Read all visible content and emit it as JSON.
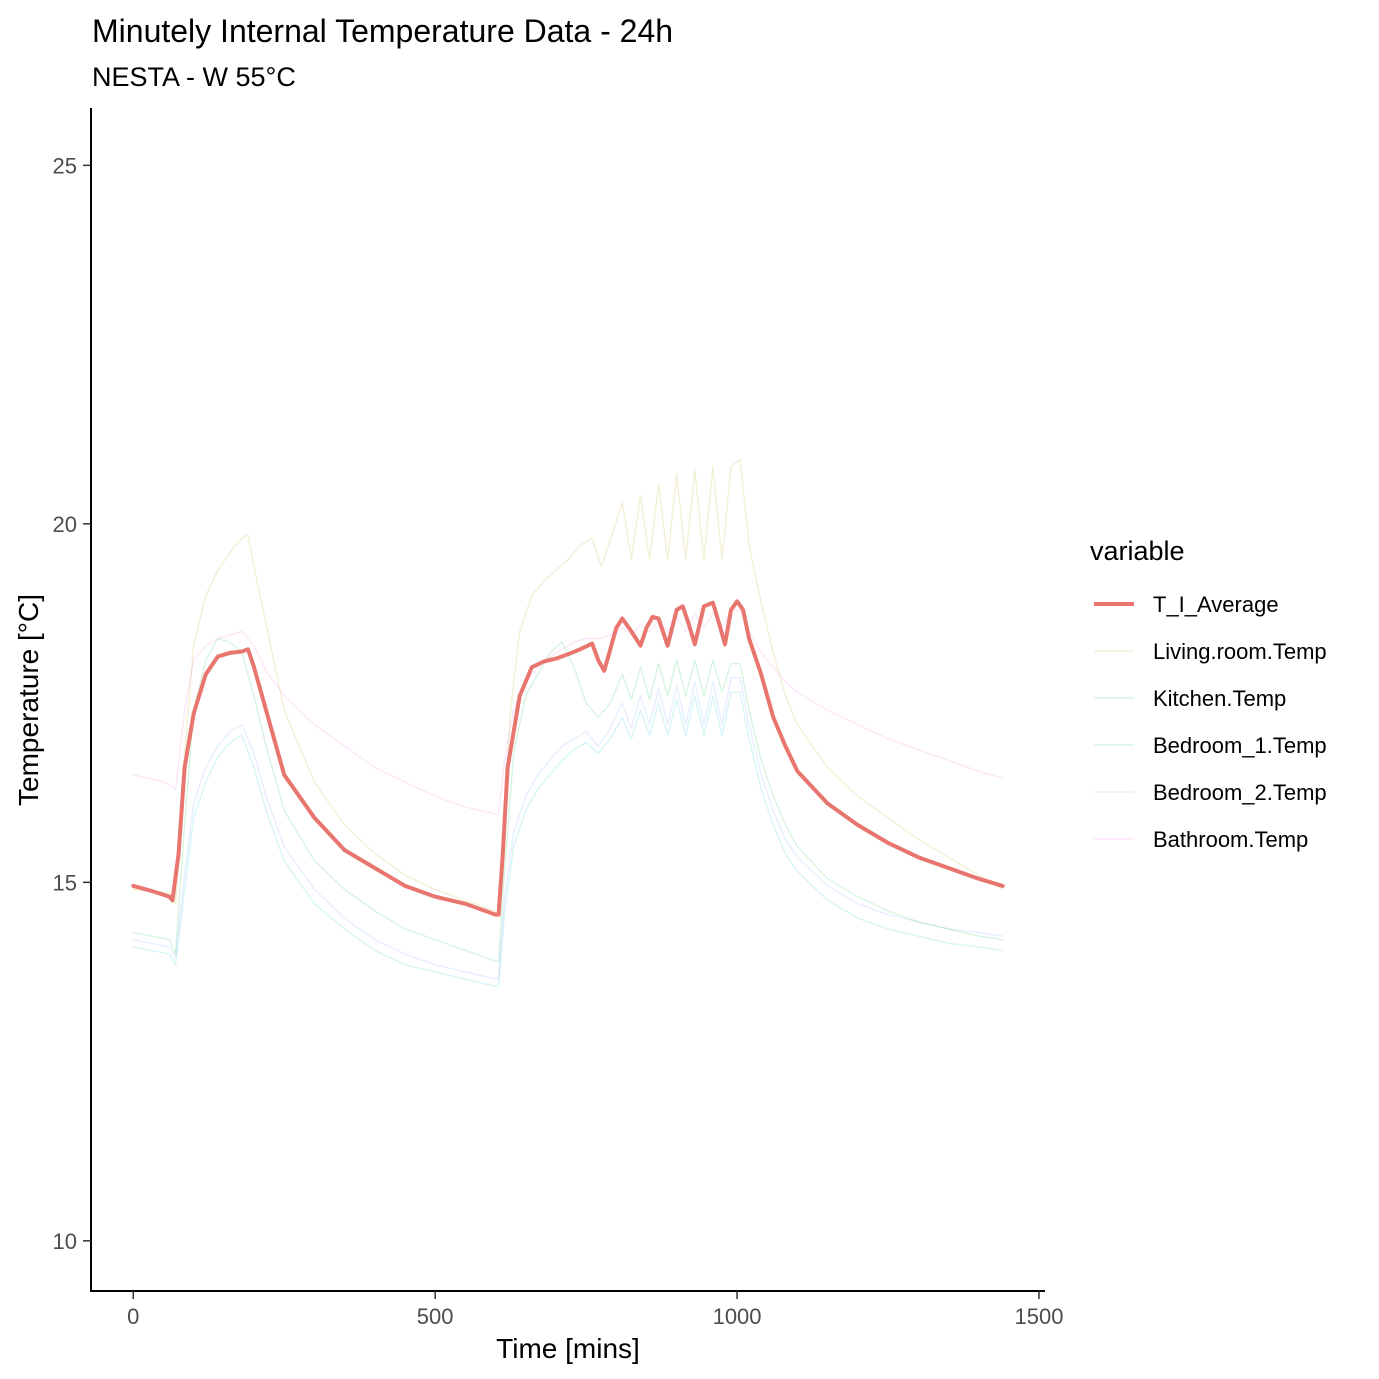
{
  "chart_data": {
    "type": "line",
    "title": "Minutely Internal Temperature Data - 24h",
    "subtitle": "NESTA - W 55°C",
    "xlabel": "Time [mins]",
    "ylabel": "Temperature [°C]",
    "xlim": [
      -70,
      1510
    ],
    "ylim": [
      9.3,
      25.8
    ],
    "xticks": [
      0,
      500,
      1000,
      1500
    ],
    "yticks": [
      10,
      15,
      20,
      25
    ],
    "grid": false,
    "legend": {
      "title": "variable",
      "placement": "right"
    },
    "series": [
      {
        "name": "T_I_Average",
        "color": "#e8766f",
        "emphasis": true,
        "x": [
          0,
          30,
          60,
          65,
          75,
          85,
          100,
          120,
          140,
          160,
          180,
          190,
          200,
          220,
          250,
          300,
          350,
          400,
          450,
          500,
          550,
          600,
          605,
          612,
          620,
          640,
          660,
          680,
          700,
          720,
          740,
          760,
          770,
          780,
          790,
          800,
          810,
          825,
          840,
          850,
          860,
          870,
          885,
          900,
          910,
          920,
          930,
          945,
          960,
          970,
          980,
          990,
          1000,
          1010,
          1020,
          1040,
          1060,
          1080,
          1100,
          1150,
          1200,
          1250,
          1300,
          1350,
          1400,
          1440
        ],
        "y": [
          14.95,
          14.88,
          14.8,
          14.75,
          15.4,
          16.6,
          17.35,
          17.9,
          18.15,
          18.2,
          18.22,
          18.25,
          18.0,
          17.4,
          16.5,
          15.9,
          15.45,
          15.2,
          14.95,
          14.8,
          14.7,
          14.55,
          14.55,
          15.4,
          16.6,
          17.6,
          18.0,
          18.08,
          18.12,
          18.18,
          18.25,
          18.33,
          18.1,
          17.95,
          18.25,
          18.55,
          18.68,
          18.5,
          18.3,
          18.55,
          18.7,
          18.68,
          18.3,
          18.8,
          18.85,
          18.6,
          18.32,
          18.85,
          18.9,
          18.62,
          18.32,
          18.8,
          18.92,
          18.8,
          18.4,
          17.9,
          17.3,
          16.9,
          16.55,
          16.1,
          15.8,
          15.55,
          15.35,
          15.2,
          15.05,
          14.95
        ]
      },
      {
        "name": "Living.room.Temp",
        "color": "#b79f00",
        "x": [
          0,
          60,
          70,
          85,
          100,
          120,
          140,
          160,
          180,
          190,
          200,
          220,
          250,
          300,
          350,
          400,
          450,
          500,
          550,
          600,
          605,
          612,
          625,
          640,
          660,
          680,
          700,
          720,
          740,
          760,
          775,
          795,
          810,
          825,
          840,
          855,
          870,
          885,
          900,
          915,
          930,
          945,
          960,
          975,
          990,
          1005,
          1020,
          1040,
          1060,
          1080,
          1100,
          1150,
          1200,
          1250,
          1300,
          1350,
          1400,
          1440
        ],
        "y": [
          14.9,
          14.85,
          14.7,
          16.8,
          18.3,
          19.0,
          19.35,
          19.6,
          19.8,
          19.85,
          19.4,
          18.6,
          17.4,
          16.4,
          15.8,
          15.4,
          15.1,
          14.9,
          14.75,
          14.6,
          14.55,
          15.6,
          17.4,
          18.5,
          19.0,
          19.2,
          19.35,
          19.5,
          19.7,
          19.8,
          19.4,
          19.9,
          20.3,
          19.5,
          20.4,
          19.5,
          20.55,
          19.5,
          20.7,
          19.5,
          20.75,
          19.5,
          20.8,
          19.5,
          20.8,
          20.9,
          19.7,
          18.9,
          18.2,
          17.6,
          17.2,
          16.6,
          16.2,
          15.9,
          15.6,
          15.35,
          15.1,
          14.9
        ]
      },
      {
        "name": "Kitchen.Temp",
        "color": "#00ba38",
        "x": [
          0,
          60,
          70,
          85,
          100,
          120,
          140,
          160,
          180,
          200,
          220,
          250,
          300,
          350,
          400,
          450,
          500,
          550,
          600,
          605,
          615,
          630,
          650,
          670,
          690,
          710,
          730,
          750,
          770,
          790,
          810,
          825,
          840,
          855,
          870,
          885,
          900,
          915,
          930,
          945,
          960,
          975,
          990,
          1005,
          1020,
          1040,
          1060,
          1080,
          1100,
          1150,
          1200,
          1250,
          1300,
          1350,
          1400,
          1440
        ],
        "y": [
          14.3,
          14.2,
          14.0,
          15.8,
          17.4,
          18.1,
          18.4,
          18.35,
          18.2,
          17.6,
          16.9,
          16.0,
          15.3,
          14.9,
          14.6,
          14.35,
          14.2,
          14.05,
          13.9,
          13.9,
          15.2,
          16.8,
          17.6,
          17.9,
          18.2,
          18.35,
          18.0,
          17.5,
          17.3,
          17.5,
          17.9,
          17.55,
          18.0,
          17.55,
          18.05,
          17.6,
          18.1,
          17.6,
          18.1,
          17.6,
          18.1,
          17.65,
          18.05,
          18.05,
          17.4,
          16.7,
          16.2,
          15.8,
          15.5,
          15.05,
          14.8,
          14.6,
          14.45,
          14.35,
          14.25,
          14.2
        ]
      },
      {
        "name": "Bedroom_1.Temp",
        "color": "#00bfc4",
        "x": [
          0,
          60,
          70,
          85,
          100,
          120,
          140,
          160,
          180,
          200,
          220,
          250,
          300,
          350,
          400,
          450,
          500,
          550,
          600,
          605,
          615,
          630,
          650,
          670,
          690,
          710,
          730,
          750,
          770,
          790,
          810,
          825,
          840,
          855,
          870,
          885,
          900,
          915,
          930,
          945,
          960,
          975,
          990,
          1005,
          1020,
          1040,
          1060,
          1080,
          1100,
          1150,
          1200,
          1250,
          1300,
          1350,
          1400,
          1440
        ],
        "y": [
          14.1,
          14.0,
          13.85,
          14.9,
          15.9,
          16.4,
          16.75,
          16.95,
          17.05,
          16.6,
          16.0,
          15.3,
          14.7,
          14.35,
          14.05,
          13.85,
          13.75,
          13.65,
          13.55,
          13.55,
          14.6,
          15.5,
          16.0,
          16.3,
          16.5,
          16.7,
          16.85,
          16.95,
          16.8,
          17.0,
          17.3,
          17.0,
          17.4,
          17.05,
          17.5,
          17.05,
          17.55,
          17.05,
          17.6,
          17.05,
          17.6,
          17.05,
          17.65,
          17.65,
          17.0,
          16.3,
          15.8,
          15.4,
          15.15,
          14.75,
          14.5,
          14.35,
          14.25,
          14.15,
          14.1,
          14.05
        ]
      },
      {
        "name": "Bedroom_2.Temp",
        "color": "#619cff",
        "x": [
          0,
          60,
          70,
          85,
          100,
          120,
          140,
          160,
          180,
          200,
          220,
          250,
          300,
          350,
          400,
          450,
          500,
          550,
          600,
          605,
          615,
          630,
          650,
          670,
          690,
          710,
          730,
          750,
          770,
          790,
          810,
          825,
          840,
          855,
          870,
          885,
          900,
          915,
          930,
          945,
          960,
          975,
          990,
          1005,
          1020,
          1040,
          1060,
          1080,
          1100,
          1150,
          1200,
          1250,
          1300,
          1350,
          1400,
          1440
        ],
        "y": [
          14.2,
          14.1,
          13.95,
          15.1,
          16.1,
          16.6,
          16.9,
          17.1,
          17.2,
          16.8,
          16.2,
          15.5,
          14.9,
          14.5,
          14.2,
          14.0,
          13.85,
          13.75,
          13.65,
          13.65,
          14.8,
          15.7,
          16.2,
          16.5,
          16.7,
          16.9,
          17.0,
          17.1,
          16.9,
          17.15,
          17.5,
          17.15,
          17.6,
          17.2,
          17.7,
          17.2,
          17.75,
          17.2,
          17.8,
          17.2,
          17.8,
          17.2,
          17.85,
          17.85,
          17.2,
          16.5,
          16.0,
          15.6,
          15.35,
          14.95,
          14.7,
          14.55,
          14.45,
          14.35,
          14.3,
          14.25
        ]
      },
      {
        "name": "Bathroom.Temp",
        "color": "#f564e3",
        "x": [
          0,
          50,
          70,
          85,
          100,
          120,
          140,
          160,
          180,
          200,
          220,
          250,
          300,
          350,
          400,
          450,
          500,
          550,
          600,
          605,
          615,
          630,
          650,
          670,
          690,
          710,
          730,
          750,
          770,
          790,
          810,
          825,
          840,
          855,
          870,
          885,
          900,
          915,
          930,
          945,
          960,
          975,
          990,
          1005,
          1020,
          1040,
          1060,
          1080,
          1100,
          1150,
          1200,
          1250,
          1300,
          1350,
          1400,
          1440
        ],
        "y": [
          16.5,
          16.4,
          16.3,
          17.4,
          18.1,
          18.3,
          18.4,
          18.45,
          18.5,
          18.3,
          17.95,
          17.6,
          17.2,
          16.9,
          16.6,
          16.4,
          16.2,
          16.05,
          15.95,
          15.95,
          16.7,
          17.4,
          17.8,
          18.0,
          18.15,
          18.25,
          18.35,
          18.4,
          18.4,
          18.45,
          18.55,
          18.45,
          18.6,
          18.5,
          18.65,
          18.5,
          18.7,
          18.5,
          18.75,
          18.55,
          18.75,
          18.55,
          18.8,
          18.8,
          18.5,
          18.2,
          18.0,
          17.8,
          17.65,
          17.4,
          17.2,
          17.0,
          16.85,
          16.7,
          16.55,
          16.45
        ]
      }
    ]
  }
}
